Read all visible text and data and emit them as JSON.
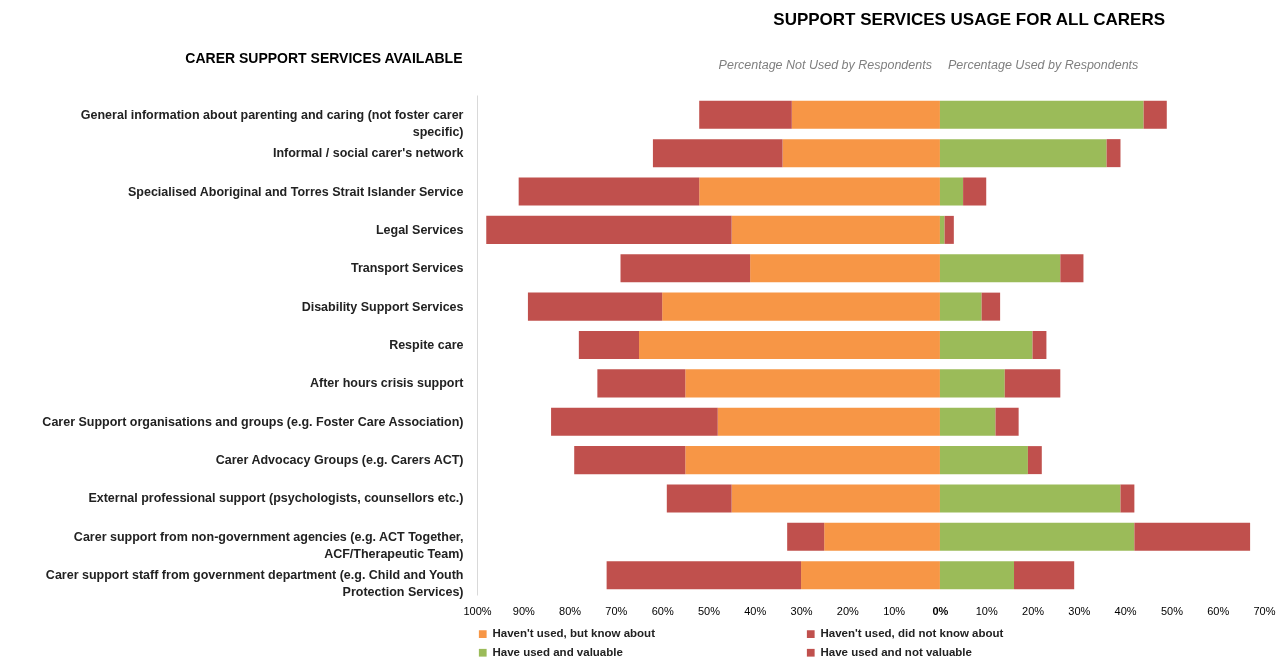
{
  "chart_data": {
    "type": "bar",
    "orientation": "horizontal",
    "stacked": true,
    "title": "SUPPORT SERVICES USAGE FOR ALL CARERS",
    "ylabel": "CARER SUPPORT SERVICES AVAILABLE",
    "annotations": [
      "Percentage Not Used by Respondents",
      "Percentage Used by Respondents"
    ],
    "categories": [
      "General information about parenting and caring (not foster carer specific)",
      "Informal / social carer's network",
      "Specialised Aboriginal and Torres Strait Islander Service",
      "Legal Services",
      "Transport Services",
      "Disability Support Services",
      "Respite care",
      "After hours crisis support",
      "Carer Support organisations and groups (e.g. Foster Care Association)",
      "Carer Advocacy Groups (e.g. Carers ACT)",
      "External professional support (psychologists, counsellors etc.)",
      "Carer support from non-government agencies (e.g. ACT Together, ACF/Therapeutic Team)",
      "Carer support staff from government department (e.g. Child and Youth Protection Services)"
    ],
    "series": [
      {
        "name": "Haven't used, but know about",
        "color": "#f79646",
        "values": [
          -32,
          -34,
          -52,
          -45,
          -41,
          -60,
          -65,
          -55,
          -48,
          -55,
          -45,
          -25,
          -30
        ]
      },
      {
        "name": "Haven't used, did not know about",
        "color": "#c0504d",
        "values": [
          -20,
          -28,
          -39,
          -53,
          -28,
          -29,
          -13,
          -19,
          -36,
          -24,
          -14,
          -8,
          -42
        ]
      },
      {
        "name": "Have used and valuable",
        "color": "#9bbb59",
        "values": [
          44,
          36,
          5,
          1,
          26,
          9,
          20,
          14,
          12,
          19,
          39,
          42,
          16
        ]
      },
      {
        "name": "Have used and not valuable",
        "color": "#c0504d",
        "values": [
          5,
          3,
          5,
          2,
          5,
          4,
          3,
          12,
          5,
          3,
          3,
          25,
          13
        ]
      }
    ],
    "xlim": [
      -100,
      70
    ],
    "xticks": [
      {
        "value": -100,
        "label": "100%"
      },
      {
        "value": -90,
        "label": "90%"
      },
      {
        "value": -80,
        "label": "80%"
      },
      {
        "value": -70,
        "label": "70%"
      },
      {
        "value": -60,
        "label": "60%"
      },
      {
        "value": -50,
        "label": "50%"
      },
      {
        "value": -40,
        "label": "40%"
      },
      {
        "value": -30,
        "label": "30%"
      },
      {
        "value": -20,
        "label": "20%"
      },
      {
        "value": -10,
        "label": "10%"
      },
      {
        "value": 0,
        "label": "0%"
      },
      {
        "value": 10,
        "label": "10%"
      },
      {
        "value": 20,
        "label": "20%"
      },
      {
        "value": 30,
        "label": "30%"
      },
      {
        "value": 40,
        "label": "40%"
      },
      {
        "value": 50,
        "label": "50%"
      },
      {
        "value": 60,
        "label": "60%"
      },
      {
        "value": 70,
        "label": "70%"
      }
    ],
    "grid": false,
    "legend": "bottom"
  }
}
